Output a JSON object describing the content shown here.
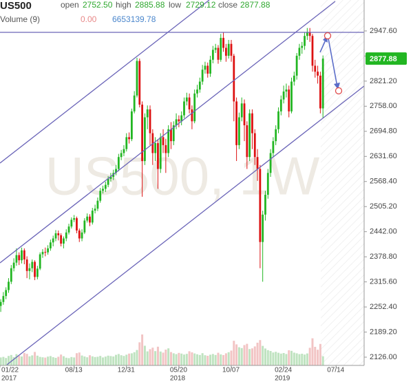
{
  "chart_data": {
    "type": "candlestick",
    "title": "US500",
    "watermark": "US500, 1W",
    "legend": [
      {
        "label": "open",
        "value": "2752.50"
      },
      {
        "label": "high",
        "value": "2885.88"
      },
      {
        "label": "low",
        "value": "2729.12"
      },
      {
        "label": "close",
        "value": "2877.88"
      }
    ],
    "volume_legend": {
      "label": "Volume (9)",
      "values": [
        "0.00",
        "6653139.78"
      ]
    },
    "x": [
      "2017-01-29",
      "2017-02-05",
      "2017-02-12",
      "2017-02-19",
      "2017-02-26",
      "2017-03-05",
      "2017-03-12",
      "2017-03-19",
      "2017-03-26",
      "2017-04-02",
      "2017-04-09",
      "2017-04-16",
      "2017-04-23",
      "2017-04-30",
      "2017-05-07",
      "2017-05-14",
      "2017-05-21",
      "2017-05-28",
      "2017-06-04",
      "2017-06-11",
      "2017-06-18",
      "2017-06-25",
      "2017-07-02",
      "2017-07-09",
      "2017-07-16",
      "2017-07-23",
      "2017-07-30",
      "2017-08-06",
      "2017-08-13",
      "2017-08-20",
      "2017-08-27",
      "2017-09-03",
      "2017-09-10",
      "2017-09-17",
      "2017-09-24",
      "2017-10-01",
      "2017-10-08",
      "2017-10-15",
      "2017-10-22",
      "2017-10-29",
      "2017-11-05",
      "2017-11-12",
      "2017-11-19",
      "2017-11-26",
      "2017-12-03",
      "2017-12-10",
      "2017-12-17",
      "2017-12-24",
      "2017-12-31",
      "2018-01-07",
      "2018-01-14",
      "2018-01-21",
      "2018-01-28",
      "2018-02-04",
      "2018-02-11",
      "2018-02-18",
      "2018-02-25",
      "2018-03-04",
      "2018-03-11",
      "2018-03-18",
      "2018-03-25",
      "2018-04-01",
      "2018-04-08",
      "2018-04-15",
      "2018-04-22",
      "2018-04-29",
      "2018-05-06",
      "2018-05-13",
      "2018-05-20",
      "2018-05-27",
      "2018-06-03",
      "2018-06-10",
      "2018-06-17",
      "2018-06-24",
      "2018-07-01",
      "2018-07-08",
      "2018-07-15",
      "2018-07-22",
      "2018-07-29",
      "2018-08-05",
      "2018-08-12",
      "2018-08-19",
      "2018-08-26",
      "2018-09-02",
      "2018-09-09",
      "2018-09-16",
      "2018-09-23",
      "2018-09-30",
      "2018-10-07",
      "2018-10-14",
      "2018-10-21",
      "2018-10-28",
      "2018-11-04",
      "2018-11-11",
      "2018-11-18",
      "2018-11-25",
      "2018-12-02",
      "2018-12-09",
      "2018-12-16",
      "2018-12-23",
      "2018-12-30",
      "2019-01-06",
      "2019-01-13",
      "2019-01-20",
      "2019-01-27",
      "2019-02-03",
      "2019-02-10",
      "2019-02-17",
      "2019-02-24",
      "2019-03-03",
      "2019-03-10",
      "2019-03-17",
      "2019-03-24",
      "2019-03-31",
      "2019-04-07",
      "2019-04-14",
      "2019-04-21",
      "2019-04-28",
      "2019-05-05",
      "2019-05-12",
      "2019-05-19",
      "2019-05-26",
      "2019-06-02",
      "2019-06-09"
    ],
    "series": [
      {
        "up_color": "#22b622",
        "down_color": "#dd1111",
        "open": [
          2255,
          2265,
          2280,
          2295,
          2316,
          2350,
          2364,
          2383,
          2370,
          2395,
          2372,
          2343,
          2350,
          2366,
          2328,
          2349,
          2385,
          2391,
          2390,
          2400,
          2415,
          2425,
          2438,
          2433,
          2412,
          2425,
          2440,
          2455,
          2472,
          2476,
          2445,
          2425,
          2440,
          2470,
          2480,
          2465,
          2495,
          2500,
          2520,
          2545,
          2550,
          2560,
          2575,
          2580,
          2590,
          2600,
          2630,
          2640,
          2650,
          2680,
          2675,
          2745,
          2785,
          2872,
          2762,
          2620,
          2730,
          2750,
          2690,
          2640,
          2665,
          2600,
          2680,
          2660,
          2640,
          2700,
          2670,
          2710,
          2725,
          2720,
          2735,
          2770,
          2780,
          2750,
          2720,
          2790,
          2800,
          2820,
          2850,
          2860,
          2840,
          2875,
          2900,
          2905,
          2875,
          2930,
          2905,
          2885,
          2915,
          2885,
          2770,
          2660,
          2730,
          2765,
          2710,
          2630,
          2740,
          2690,
          2630,
          2600,
          2416,
          2485,
          2535,
          2590,
          2640,
          2670,
          2700,
          2745,
          2775,
          2795,
          2800,
          2745,
          2820,
          2835,
          2885,
          2905,
          2910,
          2935,
          2945,
          2935,
          2860,
          2845,
          2835,
          2752.5
        ],
        "high": [
          2272,
          2290,
          2302,
          2325,
          2358,
          2375,
          2400,
          2390,
          2402,
          2400,
          2380,
          2362,
          2372,
          2370,
          2356,
          2390,
          2398,
          2402,
          2408,
          2422,
          2432,
          2446,
          2445,
          2438,
          2430,
          2448,
          2462,
          2478,
          2484,
          2480,
          2450,
          2448,
          2476,
          2488,
          2486,
          2502,
          2510,
          2528,
          2552,
          2558,
          2568,
          2582,
          2590,
          2598,
          2610,
          2638,
          2648,
          2660,
          2690,
          2692,
          2752,
          2796,
          2880,
          2878,
          2770,
          2740,
          2760,
          2760,
          2700,
          2680,
          2675,
          2690,
          2700,
          2676,
          2710,
          2718,
          2720,
          2740,
          2735,
          2745,
          2780,
          2792,
          2790,
          2760,
          2800,
          2812,
          2830,
          2862,
          2870,
          2868,
          2885,
          2910,
          2915,
          2912,
          2940,
          2945,
          2915,
          2925,
          2925,
          2890,
          2780,
          2742,
          2780,
          2775,
          2720,
          2750,
          2750,
          2700,
          2650,
          2610,
          2495,
          2545,
          2600,
          2650,
          2680,
          2710,
          2755,
          2785,
          2810,
          2815,
          2810,
          2830,
          2845,
          2892,
          2915,
          2920,
          2945,
          2955,
          2955,
          2940,
          2875,
          2860,
          2845,
          2885.88
        ],
        "low": [
          2240,
          2258,
          2272,
          2288,
          2310,
          2342,
          2356,
          2358,
          2362,
          2360,
          2325,
          2322,
          2340,
          2320,
          2322,
          2345,
          2376,
          2380,
          2384,
          2394,
          2405,
          2418,
          2420,
          2405,
          2400,
          2418,
          2435,
          2450,
          2466,
          2438,
          2416,
          2418,
          2436,
          2465,
          2456,
          2460,
          2488,
          2494,
          2515,
          2538,
          2542,
          2554,
          2568,
          2572,
          2584,
          2594,
          2622,
          2632,
          2644,
          2664,
          2670,
          2740,
          2780,
          2755,
          2530,
          2610,
          2700,
          2660,
          2610,
          2620,
          2550,
          2590,
          2640,
          2590,
          2630,
          2650,
          2660,
          2700,
          2705,
          2710,
          2728,
          2760,
          2740,
          2700,
          2715,
          2780,
          2792,
          2812,
          2840,
          2830,
          2832,
          2866,
          2892,
          2865,
          2870,
          2895,
          2870,
          2878,
          2870,
          2720,
          2620,
          2650,
          2720,
          2670,
          2600,
          2620,
          2650,
          2610,
          2570,
          2350,
          2316,
          2470,
          2525,
          2580,
          2630,
          2660,
          2690,
          2735,
          2765,
          2780,
          2730,
          2740,
          2810,
          2825,
          2875,
          2890,
          2900,
          2925,
          2920,
          2845,
          2830,
          2815,
          2740,
          2729.12
        ],
        "close": [
          2265,
          2280,
          2295,
          2316,
          2350,
          2364,
          2383,
          2370,
          2395,
          2372,
          2343,
          2350,
          2366,
          2328,
          2349,
          2385,
          2391,
          2390,
          2400,
          2415,
          2425,
          2438,
          2433,
          2412,
          2425,
          2440,
          2455,
          2472,
          2476,
          2445,
          2425,
          2440,
          2470,
          2480,
          2465,
          2495,
          2500,
          2520,
          2545,
          2550,
          2560,
          2575,
          2580,
          2590,
          2600,
          2630,
          2640,
          2650,
          2680,
          2675,
          2745,
          2785,
          2872,
          2762,
          2620,
          2730,
          2750,
          2690,
          2640,
          2665,
          2600,
          2680,
          2660,
          2640,
          2700,
          2670,
          2710,
          2725,
          2720,
          2735,
          2770,
          2780,
          2750,
          2720,
          2790,
          2800,
          2820,
          2850,
          2860,
          2840,
          2875,
          2900,
          2905,
          2875,
          2930,
          2905,
          2885,
          2915,
          2885,
          2770,
          2660,
          2730,
          2765,
          2710,
          2630,
          2740,
          2690,
          2630,
          2600,
          2416,
          2485,
          2535,
          2590,
          2640,
          2670,
          2700,
          2745,
          2775,
          2795,
          2800,
          2745,
          2820,
          2835,
          2885,
          2905,
          2910,
          2935,
          2945,
          2935,
          2860,
          2845,
          2835,
          2752.5,
          2877.88
        ]
      }
    ],
    "volume": {
      "up_color": "#bfe3c0",
      "down_color": "#f2c4c4",
      "vlim": [
        0,
        30000000
      ],
      "values": [
        5800000,
        6200000,
        5400000,
        6900000,
        7600000,
        6100000,
        8200000,
        7000000,
        6500000,
        9100000,
        8400000,
        6600000,
        7300000,
        9800000,
        7100000,
        6200000,
        5900000,
        5700000,
        6400000,
        6800000,
        6000000,
        5500000,
        6300000,
        7900000,
        6700000,
        5600000,
        5300000,
        6100000,
        5800000,
        8900000,
        9400000,
        7200000,
        6500000,
        5900000,
        7400000,
        6600000,
        6100000,
        6300000,
        6900000,
        5800000,
        6400000,
        7100000,
        6800000,
        6500000,
        7700000,
        8300000,
        7400000,
        6900000,
        7800000,
        8600000,
        8800000,
        9600000,
        11200000,
        16800000,
        22500000,
        14300000,
        10200000,
        11800000,
        12900000,
        10400000,
        13600000,
        10100000,
        9300000,
        11500000,
        12400000,
        9700000,
        8800000,
        8200000,
        9100000,
        8600000,
        7900000,
        8400000,
        10300000,
        9500000,
        8700000,
        8100000,
        7600000,
        8900000,
        7400000,
        7000000,
        7800000,
        8300000,
        7600000,
        9200000,
        8000000,
        7500000,
        8800000,
        9600000,
        10800000,
        17900000,
        15300000,
        13200000,
        12600000,
        14800000,
        15700000,
        11900000,
        12400000,
        13800000,
        16500000,
        18400000,
        14200000,
        12300000,
        11100000,
        10500000,
        9400000,
        9900000,
        9200000,
        8600000,
        9000000,
        8300000,
        11000000,
        10600000,
        9300000,
        8800000,
        8200000,
        8500000,
        7900000,
        8700000,
        12800000,
        19700000,
        13500000,
        11400000,
        15600000,
        6653139.78
      ]
    },
    "xlim": [
      "2017-01-27",
      "2019-09-27"
    ],
    "xticks": [
      {
        "value": "2017-01-22",
        "label": "01/22",
        "year": "2017"
      },
      {
        "value": "2017-08-13",
        "label": "08/13"
      },
      {
        "value": "2017-12-31",
        "label": "12/31"
      },
      {
        "value": "2018-05-20",
        "label": "05/20",
        "year": "2018"
      },
      {
        "value": "2018-10-07",
        "label": "10/07"
      },
      {
        "value": "2019-02-24",
        "label": "02/24",
        "year": "2019"
      },
      {
        "value": "2019-07-14",
        "label": "07/14"
      }
    ],
    "ylim": [
      2105.2,
      3025.5
    ],
    "yticks": [
      {
        "value": 2126,
        "label": "2126.00"
      },
      {
        "value": 2189.2,
        "label": "2189.20"
      },
      {
        "value": 2252.4,
        "label": "2252.40"
      },
      {
        "value": 2315.6,
        "label": "2315.60"
      },
      {
        "value": 2378.8,
        "label": "2378.80"
      },
      {
        "value": 2442,
        "label": "2442.00"
      },
      {
        "value": 2505.2,
        "label": "2505.20"
      },
      {
        "value": 2568.4,
        "label": "2568.40"
      },
      {
        "value": 2631.6,
        "label": "2631.60"
      },
      {
        "value": 2694.8,
        "label": "2694.80"
      },
      {
        "value": 2758,
        "label": "2758.00"
      },
      {
        "value": 2821.2,
        "label": "2821.20"
      },
      {
        "value": 2884.4,
        "label": "2884.40"
      },
      {
        "value": 2947.6,
        "label": "2947.60"
      }
    ],
    "price_label_color": "#22b622"
  }
}
